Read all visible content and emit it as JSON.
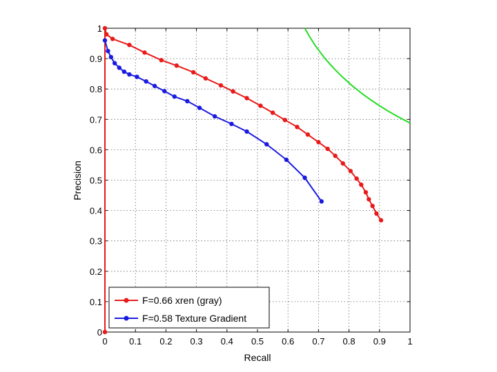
{
  "chart_data": {
    "type": "line",
    "title": "",
    "xlabel": "Recall",
    "ylabel": "Precision",
    "xlim": [
      0,
      1
    ],
    "ylim": [
      0,
      1
    ],
    "grid": true,
    "legend_position": "bottom-left",
    "x_ticks": [
      "0",
      "0.1",
      "0.2",
      "0.3",
      "0.4",
      "0.5",
      "0.6",
      "0.7",
      "0.8",
      "0.9",
      "1"
    ],
    "y_ticks": [
      "0",
      "0.1",
      "0.2",
      "0.3",
      "0.4",
      "0.5",
      "0.6",
      "0.7",
      "0.8",
      "0.9",
      "1"
    ],
    "series": [
      {
        "name": "F=0.66 xren (gray)",
        "color": "#e81a1a",
        "markers": true,
        "points": [
          [
            0,
            0
          ],
          [
            0,
            1
          ],
          [
            0.005,
            0.98
          ],
          [
            0.025,
            0.965
          ],
          [
            0.08,
            0.945
          ],
          [
            0.13,
            0.92
          ],
          [
            0.185,
            0.895
          ],
          [
            0.235,
            0.877
          ],
          [
            0.29,
            0.855
          ],
          [
            0.33,
            0.835
          ],
          [
            0.38,
            0.812
          ],
          [
            0.42,
            0.792
          ],
          [
            0.465,
            0.77
          ],
          [
            0.51,
            0.745
          ],
          [
            0.55,
            0.722
          ],
          [
            0.59,
            0.698
          ],
          [
            0.63,
            0.675
          ],
          [
            0.665,
            0.65
          ],
          [
            0.7,
            0.625
          ],
          [
            0.73,
            0.603
          ],
          [
            0.755,
            0.58
          ],
          [
            0.78,
            0.555
          ],
          [
            0.805,
            0.53
          ],
          [
            0.825,
            0.505
          ],
          [
            0.84,
            0.485
          ],
          [
            0.855,
            0.46
          ],
          [
            0.865,
            0.437
          ],
          [
            0.877,
            0.415
          ],
          [
            0.89,
            0.39
          ],
          [
            0.905,
            0.368
          ]
        ]
      },
      {
        "name": "F=0.58 Texture Gradient",
        "color": "#1a1ae0",
        "markers": true,
        "points": [
          [
            0,
            0.96
          ],
          [
            0.01,
            0.925
          ],
          [
            0.02,
            0.905
          ],
          [
            0.032,
            0.885
          ],
          [
            0.047,
            0.87
          ],
          [
            0.063,
            0.857
          ],
          [
            0.08,
            0.848
          ],
          [
            0.105,
            0.84
          ],
          [
            0.135,
            0.825
          ],
          [
            0.163,
            0.81
          ],
          [
            0.195,
            0.793
          ],
          [
            0.228,
            0.775
          ],
          [
            0.27,
            0.76
          ],
          [
            0.31,
            0.738
          ],
          [
            0.36,
            0.71
          ],
          [
            0.415,
            0.685
          ],
          [
            0.465,
            0.66
          ],
          [
            0.53,
            0.618
          ],
          [
            0.595,
            0.567
          ],
          [
            0.655,
            0.508
          ],
          [
            0.71,
            0.43
          ]
        ]
      },
      {
        "name": "",
        "color": "#22dd22",
        "markers": false,
        "points": [
          [
            0.655,
            1.0
          ],
          [
            0.67,
            0.974
          ],
          [
            0.69,
            0.942
          ],
          [
            0.72,
            0.902
          ],
          [
            0.75,
            0.868
          ],
          [
            0.78,
            0.838
          ],
          [
            0.81,
            0.811
          ],
          [
            0.84,
            0.787
          ],
          [
            0.87,
            0.765
          ],
          [
            0.9,
            0.745
          ],
          [
            0.93,
            0.726
          ],
          [
            0.96,
            0.709
          ],
          [
            1.0,
            0.688
          ]
        ]
      }
    ]
  }
}
